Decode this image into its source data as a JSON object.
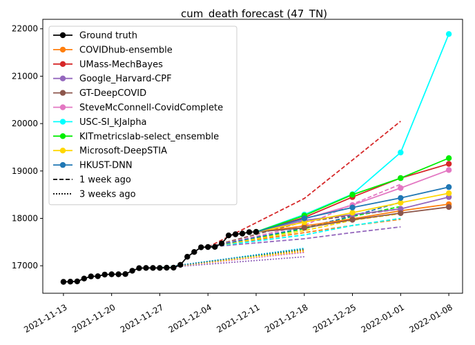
{
  "chart_data": {
    "type": "line",
    "title": "cum_death forecast (47_TN)",
    "xlabel": "",
    "ylabel": "",
    "x_range": [
      "2021-11-10",
      "2022-01-10"
    ],
    "y_range": [
      16420,
      22200
    ],
    "x_ticks": [
      "2021-11-13",
      "2021-11-20",
      "2021-11-27",
      "2021-12-04",
      "2021-12-11",
      "2021-12-18",
      "2021-12-25",
      "2022-01-01",
      "2022-01-08"
    ],
    "y_ticks": [
      17000,
      18000,
      19000,
      20000,
      21000,
      22000
    ],
    "legend_position": "top-left",
    "ground_truth": {
      "name": "Ground truth",
      "color": "#000000",
      "x": [
        "2021-11-13",
        "2021-11-14",
        "2021-11-15",
        "2021-11-16",
        "2021-11-17",
        "2021-11-18",
        "2021-11-19",
        "2021-11-20",
        "2021-11-21",
        "2021-11-22",
        "2021-11-23",
        "2021-11-24",
        "2021-11-25",
        "2021-11-26",
        "2021-11-27",
        "2021-11-28",
        "2021-11-29",
        "2021-11-30",
        "2021-12-01",
        "2021-12-02",
        "2021-12-03",
        "2021-12-04",
        "2021-12-05",
        "2021-12-06",
        "2021-12-07",
        "2021-12-08",
        "2021-12-09",
        "2021-12-10",
        "2021-12-11"
      ],
      "y": [
        16660,
        16665,
        16670,
        16730,
        16775,
        16780,
        16815,
        16820,
        16820,
        16825,
        16895,
        16950,
        16955,
        16955,
        16955,
        16958,
        16960,
        17020,
        17190,
        17290,
        17390,
        17395,
        17398,
        17470,
        17640,
        17665,
        17680,
        17710,
        17715
      ]
    },
    "series": [
      {
        "name": "COVIDhub-ensemble",
        "color": "#ff7f0e",
        "current": {
          "x": [
            "2021-12-11",
            "2021-12-18",
            "2021-12-25",
            "2022-01-01",
            "2022-01-08"
          ],
          "y": [
            17715,
            17840,
            17990,
            18160,
            18300
          ]
        },
        "week1": {
          "x": [
            "2021-12-04",
            "2021-12-18",
            "2021-12-25",
            "2022-01-01"
          ],
          "y": [
            17395,
            17700,
            17850,
            17980
          ]
        },
        "week3": {
          "x": [
            "2021-11-27",
            "2021-12-18"
          ],
          "y": [
            16955,
            17300
          ]
        }
      },
      {
        "name": "UMass-MechBayes",
        "color": "#d62728",
        "current": {
          "x": [
            "2021-12-11",
            "2021-12-18",
            "2021-12-25",
            "2022-01-01",
            "2022-01-08"
          ],
          "y": [
            17715,
            18020,
            18450,
            18850,
            19150
          ]
        },
        "week1": {
          "x": [
            "2021-12-04",
            "2021-12-18",
            "2021-12-25",
            "2022-01-01"
          ],
          "y": [
            17395,
            18420,
            19230,
            20050
          ]
        },
        "week3": {
          "x": [
            "2021-11-27",
            "2021-12-18"
          ],
          "y": [
            16955,
            17330
          ]
        }
      },
      {
        "name": "Google_Harvard-CPF",
        "color": "#9467bd",
        "current": {
          "x": [
            "2021-12-11",
            "2021-12-18",
            "2021-12-25",
            "2022-01-01",
            "2022-01-08"
          ],
          "y": [
            17715,
            17960,
            18080,
            18200,
            18450
          ]
        },
        "week1": {
          "x": [
            "2021-12-04",
            "2021-12-18",
            "2021-12-25",
            "2022-01-01"
          ],
          "y": [
            17395,
            17570,
            17700,
            17820
          ]
        },
        "week3": {
          "x": [
            "2021-11-27",
            "2021-12-18"
          ],
          "y": [
            16955,
            17190
          ]
        }
      },
      {
        "name": "GT-DeepCOVID",
        "color": "#8c564b",
        "current": {
          "x": [
            "2021-12-11",
            "2021-12-18",
            "2021-12-25",
            "2022-01-01",
            "2022-01-08"
          ],
          "y": [
            17715,
            17800,
            17970,
            18110,
            18240
          ]
        },
        "week1": {
          "x": [
            "2021-12-04",
            "2021-12-18",
            "2021-12-25",
            "2022-01-01"
          ],
          "y": [
            17395,
            17930,
            18060,
            18200
          ]
        },
        "week3": {
          "x": [
            "2021-11-27",
            "2021-12-18"
          ],
          "y": [
            16955,
            17290
          ]
        }
      },
      {
        "name": "SteveMcConnell-CovidComplete",
        "color": "#e377c2",
        "current": {
          "x": [
            "2021-12-11",
            "2021-12-18",
            "2021-12-25",
            "2022-01-01",
            "2022-01-08"
          ],
          "y": [
            17715,
            17990,
            18280,
            18640,
            19020
          ]
        },
        "week1": {
          "x": [
            "2021-12-04",
            "2021-12-18",
            "2021-12-25",
            "2022-01-01"
          ],
          "y": [
            17395,
            17850,
            18300,
            18720
          ]
        },
        "week3": {
          "x": [
            "2021-11-27",
            "2021-12-18"
          ],
          "y": [
            16955,
            17280
          ]
        }
      },
      {
        "name": "USC-SI_kJalpha",
        "color": "#00ffff",
        "current": {
          "x": [
            "2021-12-11",
            "2021-12-18",
            "2021-12-25",
            "2022-01-01",
            "2022-01-08"
          ],
          "y": [
            17715,
            18080,
            18510,
            19390,
            21890
          ]
        },
        "week1": {
          "x": [
            "2021-12-04",
            "2021-12-18",
            "2021-12-25",
            "2022-01-01"
          ],
          "y": [
            17395,
            17650,
            17850,
            18000
          ]
        },
        "week3": {
          "x": [
            "2021-11-27",
            "2021-12-18"
          ],
          "y": [
            16955,
            17370
          ]
        }
      },
      {
        "name": "KITmetricslab-select_ensemble",
        "color": "#00ee00",
        "current": {
          "x": [
            "2021-12-11",
            "2021-12-18",
            "2021-12-25",
            "2022-01-01",
            "2022-01-08"
          ],
          "y": [
            17715,
            18060,
            18500,
            18850,
            19270
          ]
        },
        "week1": {
          "x": [
            "2021-12-04",
            "2021-12-18",
            "2021-12-25",
            "2022-01-01"
          ],
          "y": [
            17395,
            17780,
            18040,
            18250
          ]
        },
        "week3": {
          "x": [
            "2021-11-27",
            "2021-12-18"
          ],
          "y": [
            16955,
            17350
          ]
        }
      },
      {
        "name": "Microsoft-DeepSTIA",
        "color": "#ffd700",
        "current": {
          "x": [
            "2021-12-11",
            "2021-12-18",
            "2021-12-25",
            "2022-01-01",
            "2022-01-08"
          ],
          "y": [
            17715,
            17920,
            18120,
            18330,
            18530
          ]
        },
        "week1": {
          "x": [
            "2021-12-04",
            "2021-12-18",
            "2021-12-25",
            "2022-01-01"
          ],
          "y": [
            17395,
            17740,
            17960,
            18100
          ]
        },
        "week3": {
          "x": [
            "2021-11-27",
            "2021-12-18"
          ],
          "y": [
            16955,
            17310
          ]
        }
      },
      {
        "name": "HKUST-DNN",
        "color": "#1f77b4",
        "current": {
          "x": [
            "2021-12-11",
            "2021-12-18",
            "2021-12-25",
            "2022-01-01",
            "2022-01-08"
          ],
          "y": [
            17715,
            18000,
            18230,
            18430,
            18660
          ]
        },
        "week1": {
          "x": [
            "2021-12-04",
            "2021-12-18",
            "2021-12-25",
            "2022-01-01"
          ],
          "y": [
            17395,
            17800,
            18050,
            18340
          ]
        },
        "week3": {
          "x": [
            "2021-11-27",
            "2021-12-18"
          ],
          "y": [
            16955,
            17360
          ]
        }
      }
    ],
    "legend_extras": [
      {
        "name": "1 week ago",
        "style": "dashed"
      },
      {
        "name": "3 weeks ago",
        "style": "dotted"
      }
    ]
  }
}
